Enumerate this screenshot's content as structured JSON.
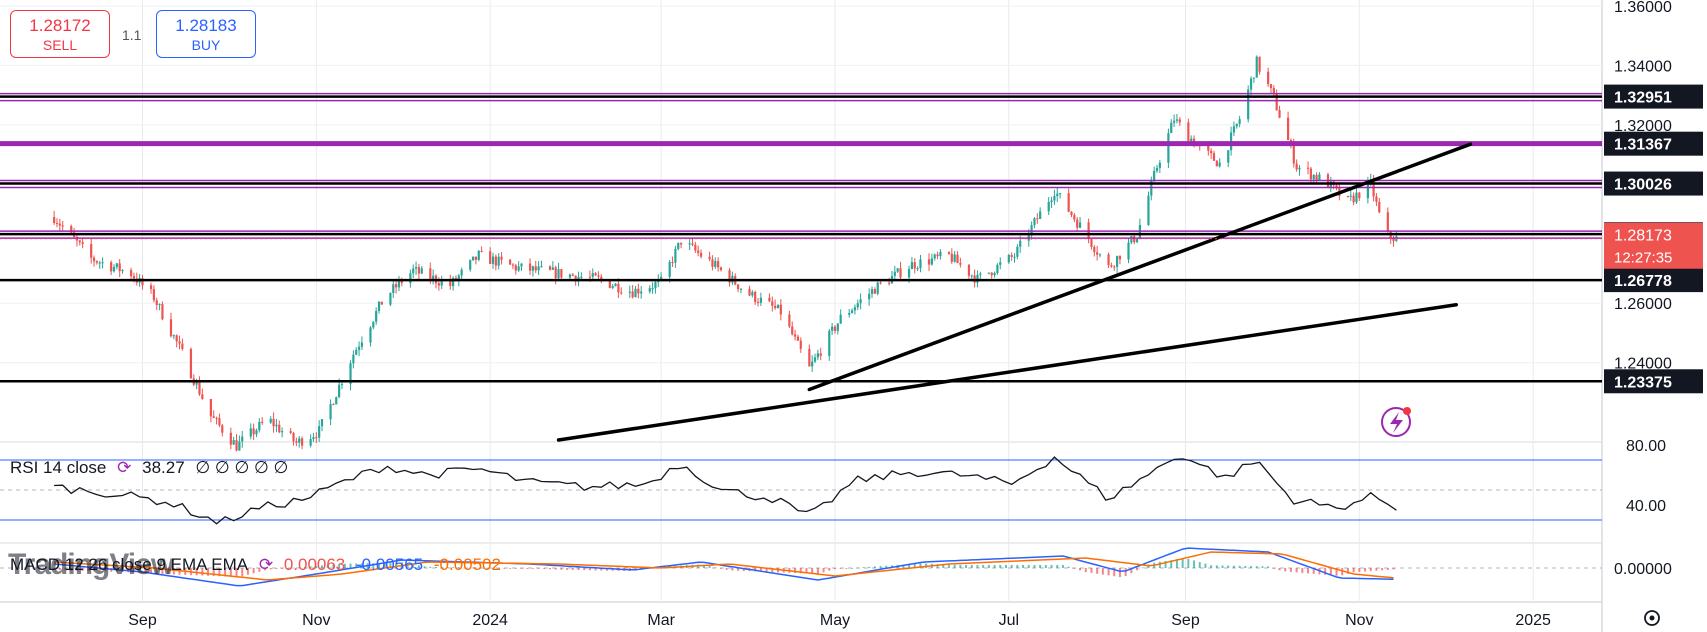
{
  "trade": {
    "sell_price": "1.28172",
    "sell_label": "SELL",
    "buy_price": "1.28183",
    "buy_label": "BUY",
    "spread": "1.1"
  },
  "watermark": "TradingView",
  "rsi_legend": {
    "name": "RSI 14 close",
    "value": "38.27",
    "extra": "∅ ∅ ∅ ∅ ∅"
  },
  "macd_legend": {
    "name": "MACD 12 26 close 9 EMA EMA",
    "v1": "0.00063",
    "v2": "-0.00565",
    "v3": "-0.00502"
  },
  "colors": {
    "up": "#26a69a",
    "down": "#ef5350",
    "level": "#000000",
    "zone": "#9c27b0",
    "rsi_band": "#2962ff",
    "macd": "#2962ff",
    "signal": "#ff6d00",
    "price_tag": "#ef5350"
  },
  "chart_data": {
    "type": "candlestick",
    "symbol_price": "1.28173",
    "countdown": "12:27:35",
    "x_ticks": [
      "Sep",
      "Nov",
      "2024",
      "Mar",
      "May",
      "Jul",
      "Sep",
      "Nov",
      "2025"
    ],
    "y_ticks": [
      "1.36000",
      "1.34000",
      "1.32000",
      "1.26000",
      "1.24000"
    ],
    "ylim": [
      1.214,
      1.362
    ],
    "price_path": [
      [
        "2023-08-01",
        1.289
      ],
      [
        "2023-08-14",
        1.275
      ],
      [
        "2023-08-28",
        1.27
      ],
      [
        "2023-09-05",
        1.262
      ],
      [
        "2023-09-15",
        1.243
      ],
      [
        "2023-09-25",
        1.222
      ],
      [
        "2023-10-04",
        1.212
      ],
      [
        "2023-10-15",
        1.221
      ],
      [
        "2023-10-25",
        1.213
      ],
      [
        "2023-11-02",
        1.217
      ],
      [
        "2023-11-14",
        1.243
      ],
      [
        "2023-11-25",
        1.262
      ],
      [
        "2023-12-05",
        1.271
      ],
      [
        "2023-12-18",
        1.266
      ],
      [
        "2023-12-28",
        1.276
      ],
      [
        "2024-01-10",
        1.272
      ],
      [
        "2024-01-25",
        1.27
      ],
      [
        "2024-02-08",
        1.268
      ],
      [
        "2024-02-20",
        1.264
      ],
      [
        "2024-03-01",
        1.267
      ],
      [
        "2024-03-08",
        1.281
      ],
      [
        "2024-03-18",
        1.274
      ],
      [
        "2024-04-01",
        1.263
      ],
      [
        "2024-04-12",
        1.257
      ],
      [
        "2024-04-22",
        1.238
      ],
      [
        "2024-05-03",
        1.255
      ],
      [
        "2024-05-15",
        1.265
      ],
      [
        "2024-05-28",
        1.273
      ],
      [
        "2024-06-10",
        1.276
      ],
      [
        "2024-06-20",
        1.268
      ],
      [
        "2024-07-03",
        1.276
      ],
      [
        "2024-07-17",
        1.298
      ],
      [
        "2024-07-26",
        1.286
      ],
      [
        "2024-08-05",
        1.272
      ],
      [
        "2024-08-15",
        1.283
      ],
      [
        "2024-08-22",
        1.306
      ],
      [
        "2024-08-28",
        1.322
      ],
      [
        "2024-09-06",
        1.312
      ],
      [
        "2024-09-13",
        1.307
      ],
      [
        "2024-09-20",
        1.322
      ],
      [
        "2024-09-26",
        1.341
      ],
      [
        "2024-10-02",
        1.329
      ],
      [
        "2024-10-10",
        1.306
      ],
      [
        "2024-10-20",
        1.301
      ],
      [
        "2024-10-28",
        1.294
      ],
      [
        "2024-11-05",
        1.3
      ],
      [
        "2024-11-10",
        1.283
      ],
      [
        "2024-11-14",
        1.2817
      ]
    ],
    "horizontal_levels": [
      {
        "price": 1.32951,
        "label": "1.32951",
        "type": "zone"
      },
      {
        "price": 1.31367,
        "label": "1.31367",
        "type": "thick-zone"
      },
      {
        "price": 1.30026,
        "label": "1.30026",
        "type": "zone"
      },
      {
        "price": 1.28323,
        "label": "1.28323",
        "type": "zone"
      },
      {
        "price": 1.26778,
        "label": "1.26778",
        "type": "line"
      },
      {
        "price": 1.23375,
        "label": "1.23375",
        "type": "line"
      }
    ],
    "trendlines": [
      {
        "from": [
          "2024-04-22",
          1.231
        ],
        "to": [
          "2024-12-10",
          1.3135
        ]
      },
      {
        "from": [
          "2024-01-25",
          1.214
        ],
        "to": [
          "2024-12-05",
          1.2595
        ]
      }
    ],
    "rsi": {
      "levels": [
        70,
        30
      ],
      "ticks": [
        "80.00",
        "40.00"
      ],
      "path": [
        [
          "2023-08-01",
          52
        ],
        [
          "2023-08-20",
          48
        ],
        [
          "2023-09-10",
          42
        ],
        [
          "2023-09-28",
          28
        ],
        [
          "2023-10-12",
          38
        ],
        [
          "2023-10-28",
          44
        ],
        [
          "2023-11-10",
          55
        ],
        [
          "2023-11-25",
          66
        ],
        [
          "2023-12-10",
          60
        ],
        [
          "2023-12-28",
          64
        ],
        [
          "2024-01-15",
          55
        ],
        [
          "2024-02-05",
          52
        ],
        [
          "2024-02-25",
          54
        ],
        [
          "2024-03-08",
          68
        ],
        [
          "2024-03-22",
          50
        ],
        [
          "2024-04-10",
          44
        ],
        [
          "2024-04-22",
          32
        ],
        [
          "2024-05-08",
          56
        ],
        [
          "2024-05-28",
          62
        ],
        [
          "2024-06-15",
          60
        ],
        [
          "2024-07-02",
          54
        ],
        [
          "2024-07-17",
          72
        ],
        [
          "2024-08-05",
          44
        ],
        [
          "2024-08-22",
          64
        ],
        [
          "2024-08-30",
          74
        ],
        [
          "2024-09-15",
          58
        ],
        [
          "2024-09-26",
          70
        ],
        [
          "2024-10-08",
          44
        ],
        [
          "2024-10-24",
          38
        ],
        [
          "2024-11-06",
          46
        ],
        [
          "2024-11-14",
          38.27
        ]
      ]
    },
    "macd": {
      "ticks": [
        "0.00000"
      ],
      "macd_path": [
        [
          "2023-08-01",
          0.002
        ],
        [
          "2023-09-01",
          -0.002
        ],
        [
          "2023-10-05",
          -0.009
        ],
        [
          "2023-11-01",
          -0.003
        ],
        [
          "2023-12-01",
          0.004
        ],
        [
          "2024-01-15",
          0.002
        ],
        [
          "2024-02-20",
          -0.001
        ],
        [
          "2024-03-15",
          0.003
        ],
        [
          "2024-04-25",
          -0.006
        ],
        [
          "2024-06-01",
          0.003
        ],
        [
          "2024-07-20",
          0.006
        ],
        [
          "2024-08-10",
          -0.002
        ],
        [
          "2024-09-01",
          0.01
        ],
        [
          "2024-09-30",
          0.008
        ],
        [
          "2024-10-25",
          -0.005
        ],
        [
          "2024-11-14",
          -0.00565
        ]
      ],
      "signal_path": [
        [
          "2023-08-01",
          0.003
        ],
        [
          "2023-09-05",
          0.0
        ],
        [
          "2023-10-15",
          -0.006
        ],
        [
          "2023-11-10",
          -0.003
        ],
        [
          "2023-12-10",
          0.003
        ],
        [
          "2024-01-25",
          0.002
        ],
        [
          "2024-03-01",
          0.0
        ],
        [
          "2024-03-25",
          0.002
        ],
        [
          "2024-05-01",
          -0.004
        ],
        [
          "2024-06-10",
          0.002
        ],
        [
          "2024-07-28",
          0.005
        ],
        [
          "2024-08-20",
          0.001
        ],
        [
          "2024-09-10",
          0.008
        ],
        [
          "2024-10-05",
          0.007
        ],
        [
          "2024-10-30",
          -0.003
        ],
        [
          "2024-11-14",
          -0.00502
        ]
      ]
    }
  }
}
